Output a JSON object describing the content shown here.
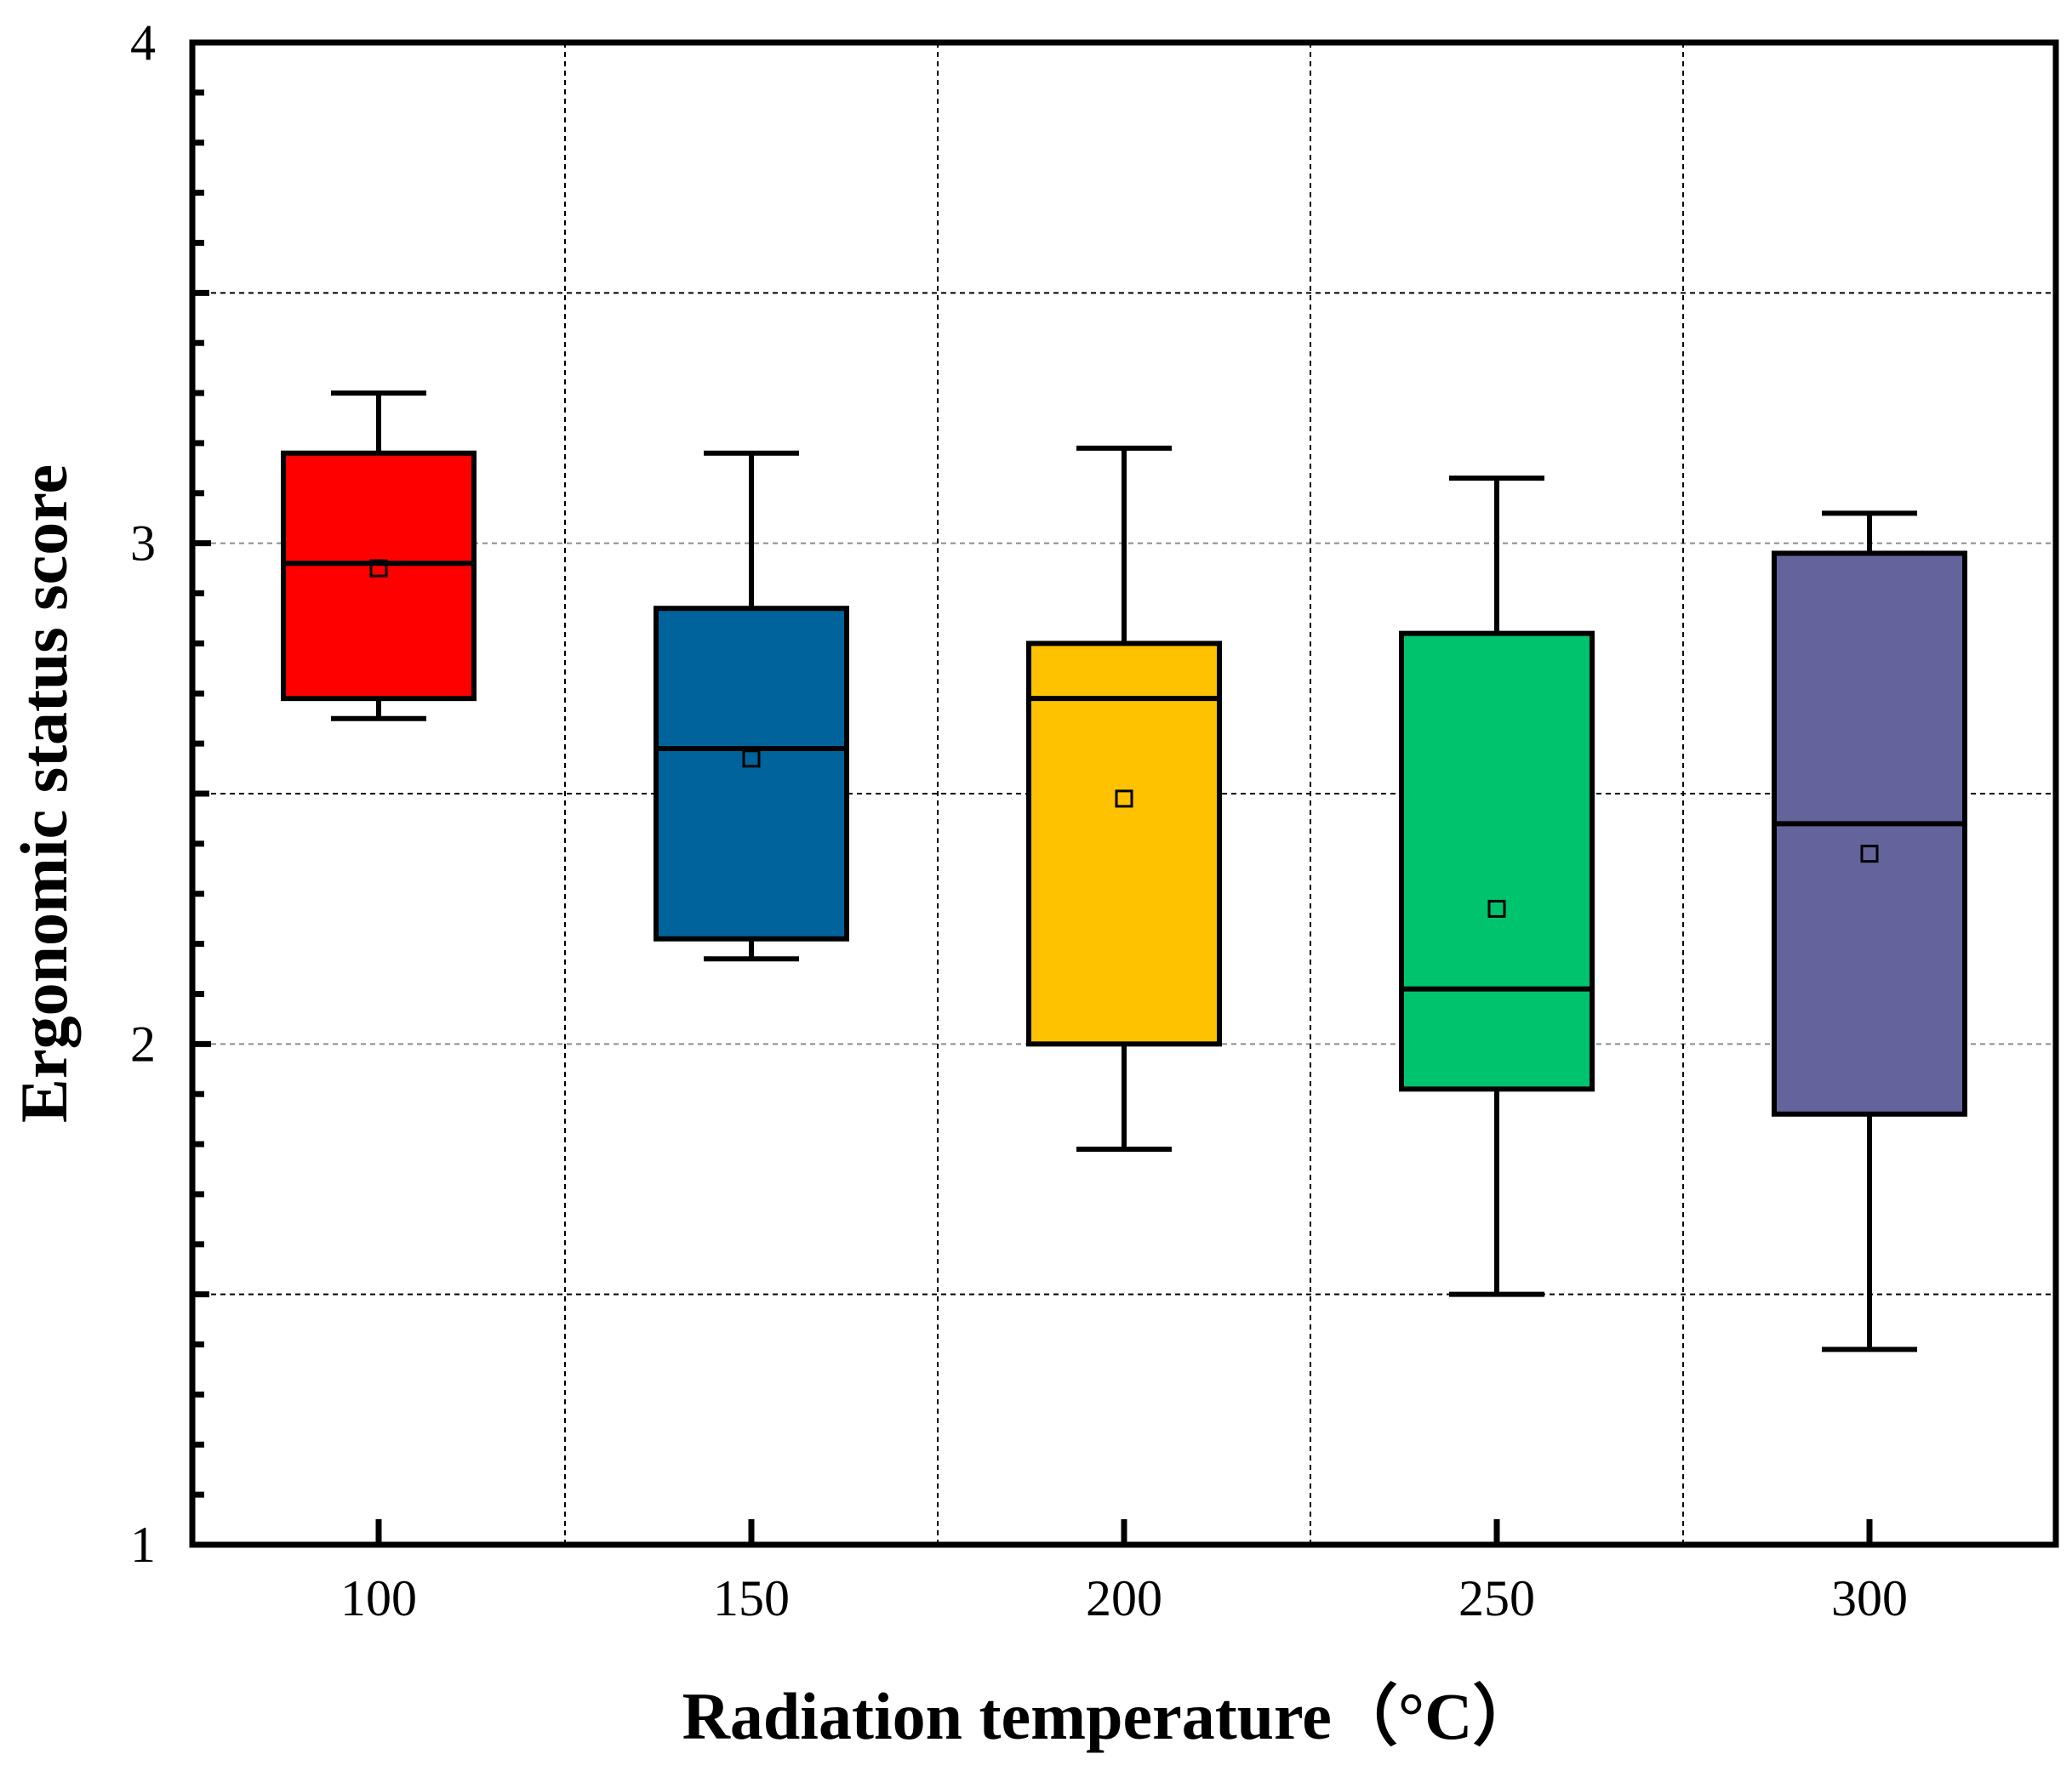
{
  "chart_data": {
    "type": "box",
    "xlabel": "Radiation temperature（°C）",
    "ylabel": "Ergonomic status score",
    "ylim": [
      1,
      4
    ],
    "yticks": [
      "1",
      "2",
      "3",
      "4"
    ],
    "grid": true,
    "categories": [
      "100",
      "150",
      "200",
      "250",
      "300"
    ],
    "series": [
      {
        "name": "100",
        "color": "#ff0000",
        "whisker_low": 2.65,
        "q1": 2.69,
        "median": 2.96,
        "q3": 3.18,
        "whisker_high": 3.3,
        "mean": 2.95
      },
      {
        "name": "150",
        "color": "#00639b",
        "whisker_low": 2.17,
        "q1": 2.21,
        "median": 2.59,
        "q3": 2.87,
        "whisker_high": 3.18,
        "mean": 2.57
      },
      {
        "name": "200",
        "color": "#fec200",
        "whisker_low": 1.79,
        "q1": 2.0,
        "median": 2.69,
        "q3": 2.8,
        "whisker_high": 3.19,
        "mean": 2.49
      },
      {
        "name": "250",
        "color": "#00c36d",
        "whisker_low": 1.5,
        "q1": 1.91,
        "median": 2.11,
        "q3": 2.82,
        "whisker_high": 3.13,
        "mean": 2.27
      },
      {
        "name": "300",
        "color": "#64649c",
        "whisker_low": 1.39,
        "q1": 1.86,
        "median": 2.44,
        "q3": 2.98,
        "whisker_high": 3.06,
        "mean": 2.38
      }
    ]
  }
}
